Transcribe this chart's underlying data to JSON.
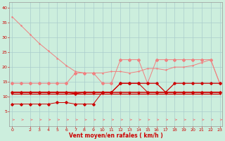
{
  "xlabel": "Vent moyen/en rafales ( km/h )",
  "x": [
    0,
    1,
    2,
    3,
    4,
    5,
    6,
    7,
    8,
    9,
    10,
    11,
    12,
    13,
    14,
    15,
    16,
    17,
    18,
    19,
    20,
    21,
    22,
    23
  ],
  "line1": [
    37.0,
    34.0,
    31.0,
    28.0,
    25.5,
    23.0,
    20.5,
    18.5,
    18.0,
    18.0,
    18.0,
    18.5,
    18.5,
    18.0,
    18.5,
    19.5,
    19.5,
    19.0,
    20.0,
    20.0,
    20.5,
    21.5,
    22.5,
    14.5
  ],
  "line2": [
    14.5,
    14.5,
    14.5,
    14.5,
    14.5,
    14.5,
    14.5,
    18.0,
    18.0,
    18.0,
    14.5,
    14.5,
    22.5,
    22.5,
    22.5,
    14.5,
    22.5,
    22.5,
    22.5,
    22.5,
    22.5,
    22.5,
    22.5,
    14.5
  ],
  "line3": [
    11.5,
    11.5,
    11.5,
    11.5,
    11.5,
    11.5,
    11.5,
    11.0,
    11.5,
    11.5,
    11.5,
    11.5,
    14.5,
    14.5,
    14.5,
    14.5,
    14.5,
    11.5,
    14.5,
    14.5,
    14.5,
    14.5,
    14.5,
    14.5
  ],
  "line4": [
    11.5,
    11.5,
    11.5,
    11.5,
    11.5,
    11.5,
    11.5,
    11.5,
    11.5,
    11.5,
    11.5,
    11.5,
    11.5,
    11.5,
    11.5,
    11.5,
    11.5,
    11.5,
    11.5,
    11.5,
    11.5,
    11.5,
    11.5,
    11.5
  ],
  "line5": [
    11.0,
    11.0,
    11.0,
    11.0,
    11.0,
    11.0,
    11.0,
    11.0,
    11.0,
    11.0,
    11.0,
    11.0,
    11.0,
    11.0,
    11.0,
    11.0,
    11.0,
    11.0,
    11.0,
    11.0,
    11.0,
    11.0,
    11.0,
    11.0
  ],
  "line6": [
    7.5,
    7.5,
    7.5,
    7.5,
    7.5,
    8.0,
    8.0,
    7.5,
    7.5,
    7.5,
    11.5,
    11.5,
    14.5,
    14.5,
    14.5,
    11.5,
    11.5,
    11.5,
    11.5,
    11.5,
    11.5,
    11.5,
    11.5,
    11.5
  ],
  "color_light": "#f08080",
  "color_dark": "#cc0000",
  "bg_color": "#cceedd",
  "grid_color": "#aacccc",
  "ylim": [
    0,
    42
  ],
  "xlim": [
    -0.3,
    23.3
  ],
  "yticks": [
    5,
    10,
    15,
    20,
    25,
    30,
    35,
    40
  ],
  "xticks": [
    0,
    2,
    3,
    4,
    5,
    6,
    7,
    8,
    9,
    10,
    11,
    12,
    13,
    14,
    15,
    16,
    17,
    18,
    19,
    20,
    21,
    22,
    23
  ]
}
